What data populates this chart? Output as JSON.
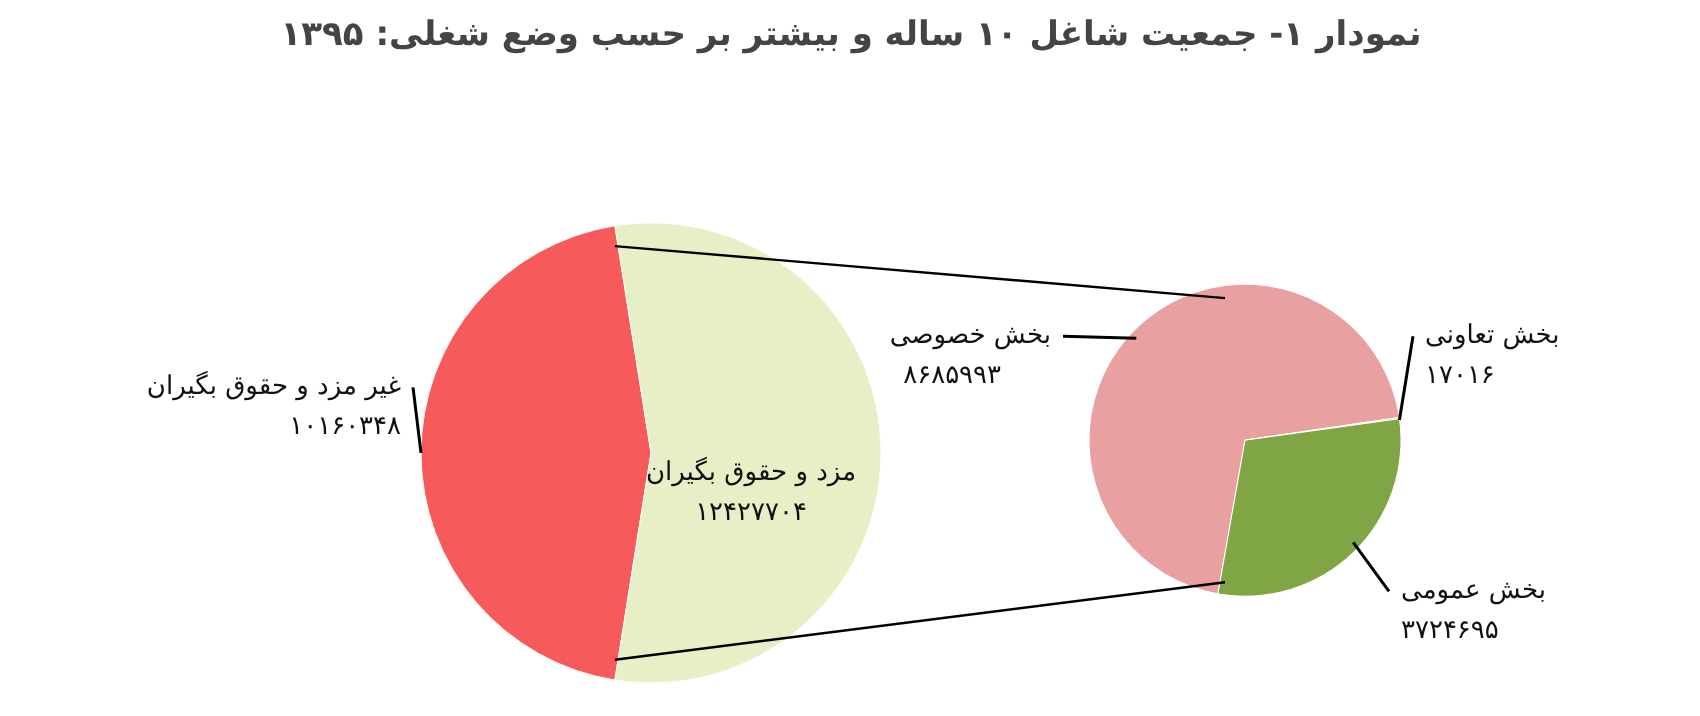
{
  "chart_data": [
    {
      "type": "pie",
      "title": "نمودار ۱- جمعیت شاغل ۱۰ ساله و بیشتر بر حسب وضع شغلی: ۱۳۹۵",
      "categories": [
        "غیر مزد و حقوق بگیران",
        "مزد و حقوق بگیران"
      ],
      "values": [
        10160348,
        12427704
      ],
      "colors": [
        "#f65a5a",
        "#e6efc5"
      ],
      "value_labels": [
        "۱۰۱۶۰۳۴۸",
        "۱۲۴۲۷۷۰۴"
      ]
    },
    {
      "type": "pie",
      "categories": [
        "بخش خصوصی",
        "بخش تعاونی",
        "بخش عمومی"
      ],
      "values": [
        8685993,
        17016,
        3724695
      ],
      "colors": [
        "#e8a0a0",
        "#9bbb59",
        "#7fa545"
      ],
      "value_labels": [
        "۸۶۸۵۹۹۳",
        "۱۷۰۱۶",
        "۳۷۲۴۶۹۵"
      ]
    }
  ]
}
